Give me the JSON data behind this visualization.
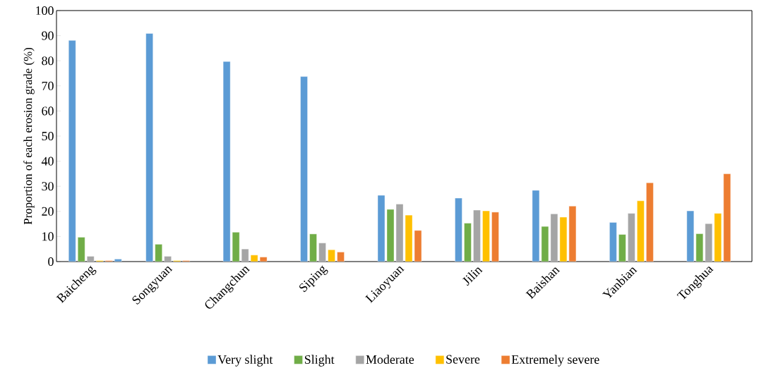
{
  "chart_data": {
    "type": "bar",
    "ylabel": "Proportion of each erosion grade (%)",
    "categories": [
      "Baicheng",
      "Songyuan",
      "Changchun",
      "Siping",
      "Liaoyuan",
      "Jilin",
      "Baishan",
      "Yanbian",
      "Tonghua"
    ],
    "series": [
      {
        "name": "Very slight",
        "color": "#5b9bd5",
        "values": [
          88.1,
          90.9,
          79.7,
          73.7,
          26.4,
          25.3,
          28.4,
          15.6,
          20.2
        ]
      },
      {
        "name": "Slight",
        "color": "#70ad47",
        "values": [
          9.7,
          6.9,
          11.7,
          11.0,
          20.8,
          15.3,
          14.0,
          10.8,
          11.1
        ]
      },
      {
        "name": "Moderate",
        "color": "#a5a5a5",
        "values": [
          2.1,
          2.1,
          5.0,
          7.4,
          22.9,
          20.5,
          19.0,
          19.2,
          15.1
        ]
      },
      {
        "name": "Severe",
        "color": "#ffc000",
        "values": [
          0.4,
          0.4,
          2.6,
          4.7,
          18.5,
          20.2,
          17.7,
          24.2,
          19.2
        ]
      },
      {
        "name": "Extremely severe",
        "color": "#ed7d31",
        "values": [
          0.4,
          0.4,
          1.8,
          3.8,
          12.4,
          19.7,
          22.1,
          31.4,
          35.0
        ]
      },
      {
        "color": "#5b9bd5",
        "values": [
          1.0,
          null,
          null,
          null,
          null,
          null,
          null,
          null,
          null
        ]
      }
    ],
    "ylim": [
      0,
      100
    ],
    "yticks": [
      0,
      10,
      20,
      30,
      40,
      50,
      60,
      70,
      80,
      90,
      100
    ],
    "grid": false,
    "legend": "bottom"
  }
}
